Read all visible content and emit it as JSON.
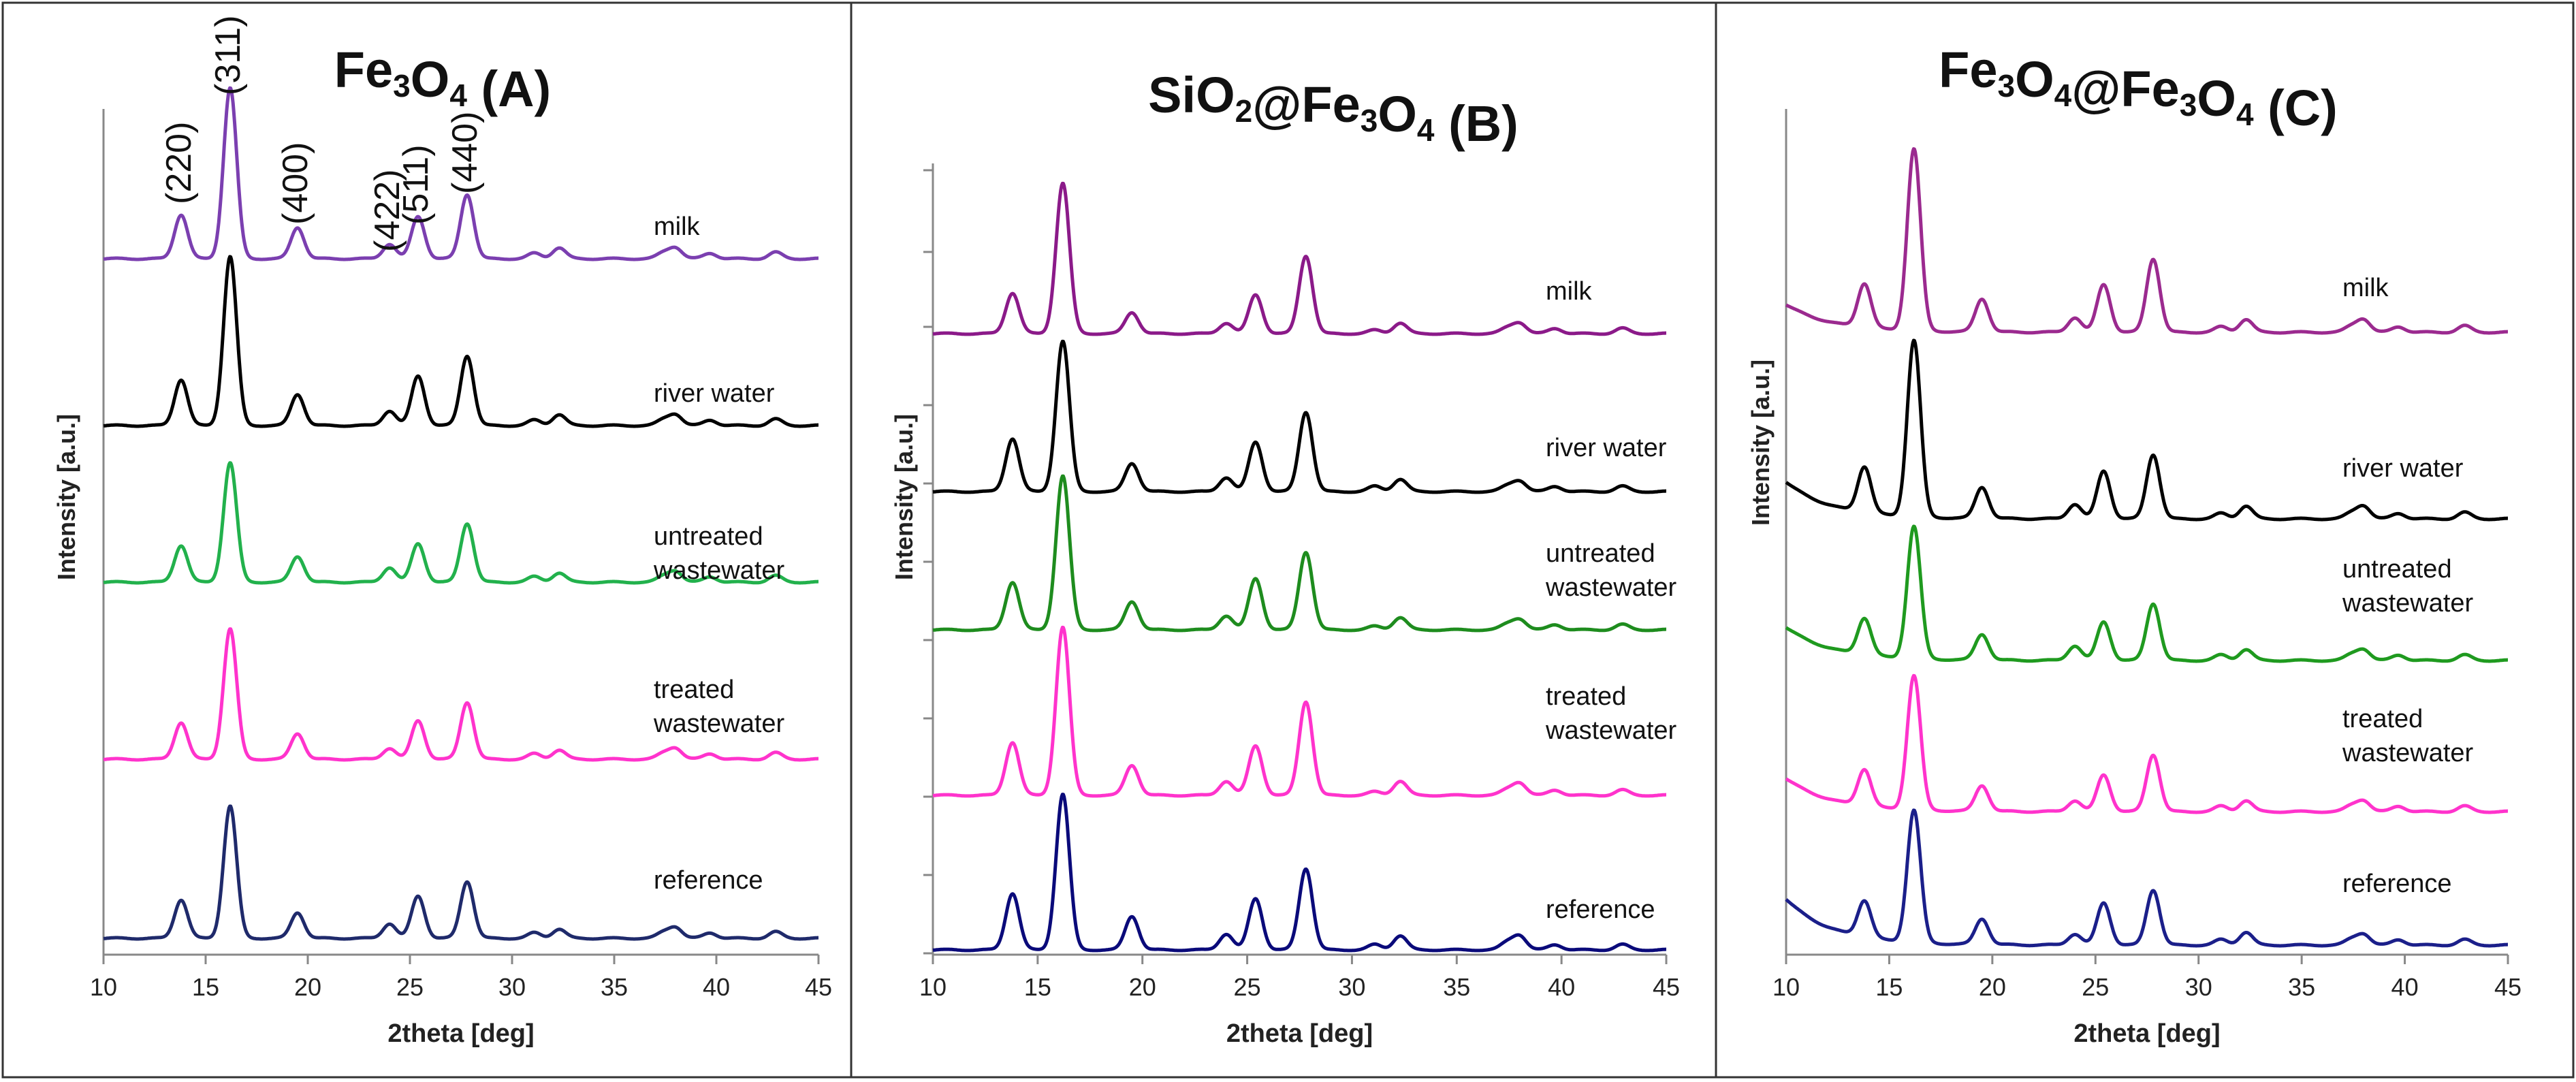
{
  "chart_data": [
    {
      "type": "line",
      "title": "Fe3O4 (A)",
      "title_parts": [
        {
          "t": "Fe",
          "sub": false
        },
        {
          "t": "3",
          "sub": true
        },
        {
          "t": "O",
          "sub": false
        },
        {
          "t": "4",
          "sub": true
        },
        {
          "t": " (A)",
          "sub": false
        }
      ],
      "xlabel": "2theta [deg]",
      "ylabel": "Intensity [a.u.]",
      "xlim": [
        10,
        45
      ],
      "xticks": [
        10,
        15,
        20,
        25,
        30,
        35,
        40,
        45
      ],
      "yticks_shown": false,
      "peak_positions": [
        13.8,
        16.2,
        19.5,
        24.0,
        25.4,
        27.8,
        31.1,
        32.3,
        37.4,
        38.0,
        39.7,
        42.9
      ],
      "series": [
        {
          "name": "milk",
          "label_lines": [
            "milk"
          ],
          "color": "#7B3FB0",
          "baseline": 2.0,
          "slope": 0,
          "start_bump": 0,
          "peaks": [
            2.4,
            9.3,
            1.7,
            0.8,
            2.3,
            3.5,
            0.3,
            0.6,
            0.3,
            0.6,
            0.3,
            0.35
          ]
        },
        {
          "name": "river water",
          "label_lines": [
            "river water"
          ],
          "color": "#000000",
          "baseline": 1.0,
          "slope": 0,
          "start_bump": 0,
          "peaks": [
            2.5,
            9.2,
            1.7,
            0.8,
            2.7,
            3.8,
            0.3,
            0.6,
            0.3,
            0.6,
            0.3,
            0.35
          ]
        },
        {
          "name": "untreated wastewater",
          "label_lines": [
            "untreated",
            "wastewater"
          ],
          "color": "#22B14C",
          "baseline": 1.0,
          "slope": 0,
          "start_bump": 0,
          "peaks": [
            2.0,
            6.5,
            1.4,
            0.8,
            2.1,
            3.2,
            0.3,
            0.5,
            0.3,
            0.6,
            0.3,
            0.35
          ]
        },
        {
          "name": "treated wastewater",
          "label_lines": [
            "treated",
            "wastewater"
          ],
          "color": "#FF33CC",
          "baseline": 1.0,
          "slope": 0,
          "start_bump": 0,
          "peaks": [
            2.0,
            7.1,
            1.4,
            0.6,
            2.1,
            3.1,
            0.3,
            0.5,
            0.3,
            0.6,
            0.3,
            0.35
          ]
        },
        {
          "name": "reference",
          "label_lines": [
            "reference"
          ],
          "color": "#1F2A6B",
          "baseline": 0.0,
          "slope": 0,
          "start_bump": 0,
          "peaks": [
            2.1,
            7.2,
            1.4,
            0.8,
            2.3,
            3.1,
            0.3,
            0.5,
            0.3,
            0.6,
            0.3,
            0.35
          ]
        }
      ],
      "annotations": [
        {
          "text": "(220)",
          "x": 13.8
        },
        {
          "text": "(311)",
          "x": 16.2
        },
        {
          "text": "(400)",
          "x": 19.5
        },
        {
          "text": "(422)",
          "x": 24.0
        },
        {
          "text": "(511)",
          "x": 25.4
        },
        {
          "text": "(440)",
          "x": 27.8
        }
      ]
    },
    {
      "type": "line",
      "title": "SiO2@Fe3O4 (B)",
      "title_parts": [
        {
          "t": "SiO",
          "sub": false
        },
        {
          "t": "2",
          "sub": true
        },
        {
          "t": "@Fe",
          "sub": false
        },
        {
          "t": "3",
          "sub": true
        },
        {
          "t": "O",
          "sub": false
        },
        {
          "t": "4",
          "sub": true
        },
        {
          "t": " (B)",
          "sub": false
        }
      ],
      "xlabel": "2theta [deg]",
      "ylabel": "Intensity [a.u.]",
      "xlim": [
        10,
        45
      ],
      "xticks": [
        10,
        15,
        20,
        25,
        30,
        35,
        40,
        45
      ],
      "yticks_shown": true,
      "peak_positions": [
        13.8,
        16.2,
        19.5,
        24.0,
        25.4,
        27.8,
        31.1,
        32.3,
        37.4,
        38.0,
        39.7,
        42.9
      ],
      "series": [
        {
          "name": "milk",
          "label_lines": [
            "milk"
          ],
          "color": "#8B1A89",
          "baseline": 3.8,
          "slope": 0,
          "start_bump": 0,
          "peaks": [
            2.3,
            8.5,
            1.2,
            0.6,
            2.2,
            4.4,
            0.2,
            0.6,
            0.3,
            0.6,
            0.3,
            0.3
          ]
        },
        {
          "name": "river water",
          "label_lines": [
            "river water"
          ],
          "color": "#000000",
          "baseline": 1.9,
          "slope": 0,
          "start_bump": 0,
          "peaks": [
            3.0,
            8.5,
            1.6,
            0.8,
            2.8,
            4.5,
            0.3,
            0.7,
            0.3,
            0.6,
            0.3,
            0.3
          ]
        },
        {
          "name": "untreated wastewater",
          "label_lines": [
            "untreated",
            "wastewater"
          ],
          "color": "#1E8C1E",
          "baseline": 1.9,
          "slope": 0,
          "start_bump": 0,
          "peaks": [
            2.7,
            8.7,
            1.6,
            0.8,
            2.9,
            4.4,
            0.2,
            0.7,
            0.3,
            0.6,
            0.3,
            0.3
          ]
        },
        {
          "name": "treated wastewater",
          "label_lines": [
            "treated",
            "wastewater"
          ],
          "color": "#FF33CC",
          "baseline": 1.9,
          "slope": 0,
          "start_bump": 0,
          "peaks": [
            3.0,
            9.5,
            1.7,
            0.8,
            2.8,
            5.3,
            0.2,
            0.8,
            0.3,
            0.7,
            0.3,
            0.3
          ]
        },
        {
          "name": "reference",
          "label_lines": [
            "reference"
          ],
          "color": "#0A0A7A",
          "baseline": 0.0,
          "slope": 0,
          "start_bump": 0,
          "peaks": [
            3.2,
            8.8,
            1.9,
            0.9,
            2.9,
            4.6,
            0.3,
            0.8,
            0.4,
            0.8,
            0.3,
            0.3
          ]
        }
      ],
      "annotations": []
    },
    {
      "type": "line",
      "title": "Fe3O4@Fe3O4   (C)",
      "title_parts": [
        {
          "t": "Fe",
          "sub": false
        },
        {
          "t": "3",
          "sub": true
        },
        {
          "t": "O",
          "sub": false
        },
        {
          "t": "4",
          "sub": true
        },
        {
          "t": "@Fe",
          "sub": false
        },
        {
          "t": "3",
          "sub": true
        },
        {
          "t": "O",
          "sub": false
        },
        {
          "t": "4",
          "sub": true
        },
        {
          "t": "   (C)",
          "sub": false
        }
      ],
      "xlabel": "2theta [deg]",
      "ylabel": "Intensity [a.u.]",
      "xlim": [
        10,
        45
      ],
      "xticks": [
        10,
        15,
        20,
        25,
        30,
        35,
        40,
        45
      ],
      "yticks_shown": false,
      "peak_positions": [
        13.8,
        16.2,
        19.5,
        24.0,
        25.4,
        27.8,
        31.1,
        32.3,
        37.4,
        38.0,
        39.7,
        42.9
      ],
      "series": [
        {
          "name": "milk",
          "label_lines": [
            "milk"
          ],
          "color": "#9B2A8F",
          "baseline": 2.6,
          "slope": 1.5,
          "start_bump": 0,
          "peaks": [
            2.4,
            9.9,
            1.8,
            0.8,
            2.6,
            4.0,
            0.3,
            0.7,
            0.3,
            0.7,
            0.3,
            0.35
          ]
        },
        {
          "name": "river water",
          "label_lines": [
            "river water"
          ],
          "color": "#000000",
          "baseline": 2.1,
          "slope": 2.0,
          "start_bump": 0,
          "peaks": [
            2.5,
            9.6,
            1.7,
            0.8,
            2.6,
            3.5,
            0.3,
            0.7,
            0.3,
            0.7,
            0.3,
            0.35
          ]
        },
        {
          "name": "untreated wastewater",
          "label_lines": [
            "untreated",
            "wastewater"
          ],
          "color": "#1F9A1F",
          "baseline": 1.8,
          "slope": 1.8,
          "start_bump": 0,
          "peaks": [
            2.0,
            7.2,
            1.4,
            0.8,
            2.1,
            3.1,
            0.3,
            0.6,
            0.3,
            0.6,
            0.3,
            0.3
          ]
        },
        {
          "name": "treated wastewater",
          "label_lines": [
            "treated",
            "wastewater"
          ],
          "color": "#FF33CC",
          "baseline": 1.8,
          "slope": 1.8,
          "start_bump": 0,
          "peaks": [
            2.0,
            7.3,
            1.4,
            0.6,
            2.0,
            3.1,
            0.3,
            0.6,
            0.3,
            0.6,
            0.3,
            0.3
          ]
        },
        {
          "name": "reference",
          "label_lines": [
            "reference"
          ],
          "color": "#1B1F8A",
          "baseline": 0.0,
          "slope": 2.5,
          "start_bump": 0,
          "peaks": [
            2.0,
            7.2,
            1.4,
            0.6,
            2.3,
            3.0,
            0.3,
            0.7,
            0.3,
            0.6,
            0.3,
            0.3
          ]
        }
      ],
      "annotations": []
    }
  ]
}
